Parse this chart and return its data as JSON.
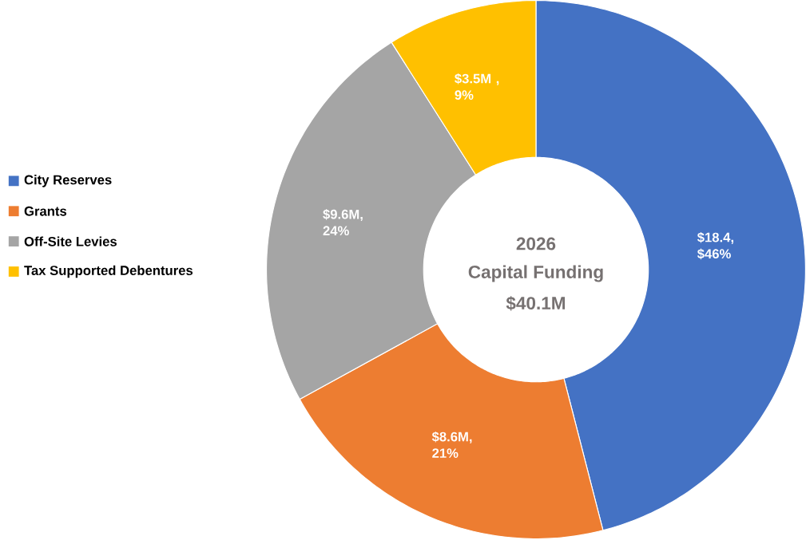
{
  "chart_data": {
    "type": "donut",
    "title": "2026",
    "subtitle": "Capital Funding",
    "annotations": [
      "$40.1M"
    ],
    "categories": [
      "City Reserves",
      "Grants",
      "Off-Site Levies",
      "Tax Supported Debentures"
    ],
    "values": [
      46,
      21,
      24,
      9
    ],
    "colors": [
      "#4472c4",
      "#ed7d31",
      "#a5a5a5",
      "#ffc000"
    ],
    "value_labels": [
      "$18.4, $46%",
      "$8.6M, 21%",
      "$9.6M, 24%",
      "$3.5M , 9%"
    ],
    "legend": "left"
  }
}
